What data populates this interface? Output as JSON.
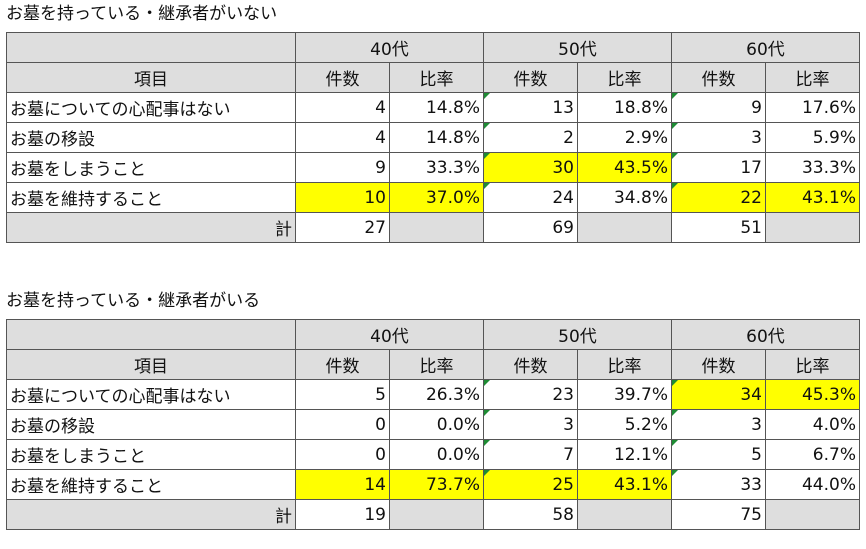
{
  "colors": {
    "highlight": "#ffff00",
    "header_bg": "#dedede",
    "flag": "#1e8c34"
  },
  "chart_data": [
    {
      "type": "table",
      "title": "お墓を持っている・継承者がいない",
      "groups": [
        "40代",
        "50代",
        "60代"
      ],
      "sub_headers": [
        "件数",
        "比率"
      ],
      "item_header": "項目",
      "total_label": "計",
      "rows": [
        {
          "label": "お墓についての心配事はない",
          "cells": [
            [
              "4",
              "14.8%"
            ],
            [
              "13",
              "18.8%"
            ],
            [
              "9",
              "17.6%"
            ]
          ],
          "highlight": [
            false,
            false,
            false
          ]
        },
        {
          "label": "お墓の移設",
          "cells": [
            [
              "4",
              "14.8%"
            ],
            [
              "2",
              "2.9%"
            ],
            [
              "3",
              "5.9%"
            ]
          ],
          "highlight": [
            false,
            false,
            false
          ]
        },
        {
          "label": "お墓をしまうこと",
          "cells": [
            [
              "9",
              "33.3%"
            ],
            [
              "30",
              "43.5%"
            ],
            [
              "17",
              "33.3%"
            ]
          ],
          "highlight": [
            false,
            true,
            false
          ]
        },
        {
          "label": "お墓を維持すること",
          "cells": [
            [
              "10",
              "37.0%"
            ],
            [
              "24",
              "34.8%"
            ],
            [
              "22",
              "43.1%"
            ]
          ],
          "highlight": [
            true,
            false,
            true
          ]
        }
      ],
      "totals": [
        "27",
        "69",
        "51"
      ]
    },
    {
      "type": "table",
      "title": "お墓を持っている・継承者がいる",
      "groups": [
        "40代",
        "50代",
        "60代"
      ],
      "sub_headers": [
        "件数",
        "比率"
      ],
      "item_header": "項目",
      "total_label": "計",
      "rows": [
        {
          "label": "お墓についての心配事はない",
          "cells": [
            [
              "5",
              "26.3%"
            ],
            [
              "23",
              "39.7%"
            ],
            [
              "34",
              "45.3%"
            ]
          ],
          "highlight": [
            false,
            false,
            true
          ]
        },
        {
          "label": "お墓の移設",
          "cells": [
            [
              "0",
              "0.0%"
            ],
            [
              "3",
              "5.2%"
            ],
            [
              "3",
              "4.0%"
            ]
          ],
          "highlight": [
            false,
            false,
            false
          ]
        },
        {
          "label": "お墓をしまうこと",
          "cells": [
            [
              "0",
              "0.0%"
            ],
            [
              "7",
              "12.1%"
            ],
            [
              "5",
              "6.7%"
            ]
          ],
          "highlight": [
            false,
            false,
            false
          ]
        },
        {
          "label": "お墓を維持すること",
          "cells": [
            [
              "14",
              "73.7%"
            ],
            [
              "25",
              "43.1%"
            ],
            [
              "33",
              "44.0%"
            ]
          ],
          "highlight": [
            true,
            true,
            false
          ]
        }
      ],
      "totals": [
        "19",
        "58",
        "75"
      ]
    }
  ]
}
